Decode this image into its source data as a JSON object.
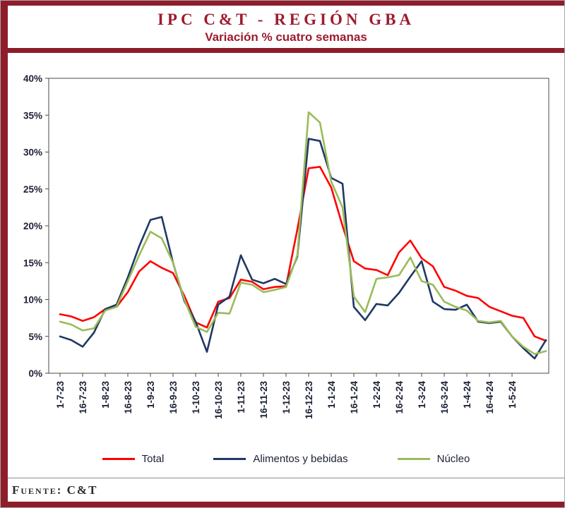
{
  "colors": {
    "maroon": "#8e1c2b",
    "title_text": "#9e1b2f",
    "axis_text": "#1c2135"
  },
  "header": {
    "title": "IPC C&T - REGIÓN GBA",
    "subtitle": "Variación % cuatro semanas"
  },
  "footer": {
    "source": "Fuente: C&T"
  },
  "chart_data": {
    "type": "line",
    "title": "IPC C&T - REGIÓN GBA",
    "subtitle": "Variación % cuatro semanas",
    "xlabel": "",
    "ylabel": "",
    "ylim": [
      0,
      40
    ],
    "ytick_step": 5,
    "ytick_labels": [
      "0%",
      "5%",
      "10%",
      "15%",
      "20%",
      "25%",
      "30%",
      "35%",
      "40%"
    ],
    "grid": false,
    "legend_position": "bottom",
    "x_tick_every": 2,
    "x_tick_labels": [
      "1-7-23",
      "16-7-23",
      "1-8-23",
      "16-8-23",
      "1-9-23",
      "16-9-23",
      "1-10-23",
      "16-10-23",
      "1-11-23",
      "16-11-23",
      "1-12-23",
      "16-12-23",
      "1-1-24",
      "16-1-24",
      "1-2-24",
      "16-2-24",
      "1-3-24",
      "16-3-24",
      "1-4-24",
      "16-4-24",
      "1-5-24"
    ],
    "series": [
      {
        "name": "Total",
        "color": "#ff0000",
        "values": [
          8.0,
          7.7,
          7.1,
          7.6,
          8.7,
          9.0,
          11.0,
          13.8,
          15.2,
          14.3,
          13.6,
          10.5,
          6.9,
          6.2,
          9.7,
          10.2,
          12.7,
          12.4,
          11.4,
          11.7,
          11.8,
          19.5,
          27.8,
          28.0,
          25.2,
          20.0,
          15.2,
          14.2,
          14.0,
          13.3,
          16.4,
          18.0,
          15.6,
          14.5,
          11.7,
          11.2,
          10.5,
          10.2,
          9.0,
          8.4,
          7.8,
          7.5,
          5.0,
          4.4
        ]
      },
      {
        "name": "Alimentos y bebidas",
        "color": "#1f3864",
        "values": [
          5.0,
          4.5,
          3.6,
          5.5,
          8.7,
          9.3,
          13.0,
          17.2,
          20.8,
          21.2,
          15.0,
          9.8,
          7.0,
          2.9,
          9.3,
          10.4,
          16.0,
          12.7,
          12.2,
          12.8,
          12.1,
          15.8,
          31.8,
          31.5,
          26.5,
          25.7,
          9.0,
          7.2,
          9.4,
          9.2,
          10.9,
          13.1,
          15.2,
          9.7,
          8.7,
          8.6,
          9.3,
          7.0,
          6.8,
          7.0,
          5.0,
          3.4,
          2.0,
          4.5
        ]
      },
      {
        "name": "Núcleo",
        "color": "#9bbb59",
        "values": [
          7.0,
          6.6,
          5.8,
          6.1,
          8.5,
          9.0,
          12.5,
          16.0,
          19.2,
          18.3,
          15.0,
          10.0,
          6.3,
          5.6,
          8.2,
          8.1,
          12.3,
          12.0,
          11.0,
          11.3,
          11.7,
          16.0,
          35.4,
          34.0,
          26.0,
          22.5,
          10.4,
          8.3,
          12.8,
          13.0,
          13.3,
          15.7,
          12.5,
          12.0,
          9.7,
          9.0,
          8.5,
          7.1,
          6.9,
          7.1,
          5.0,
          3.6,
          2.6,
          3.0
        ]
      }
    ]
  }
}
